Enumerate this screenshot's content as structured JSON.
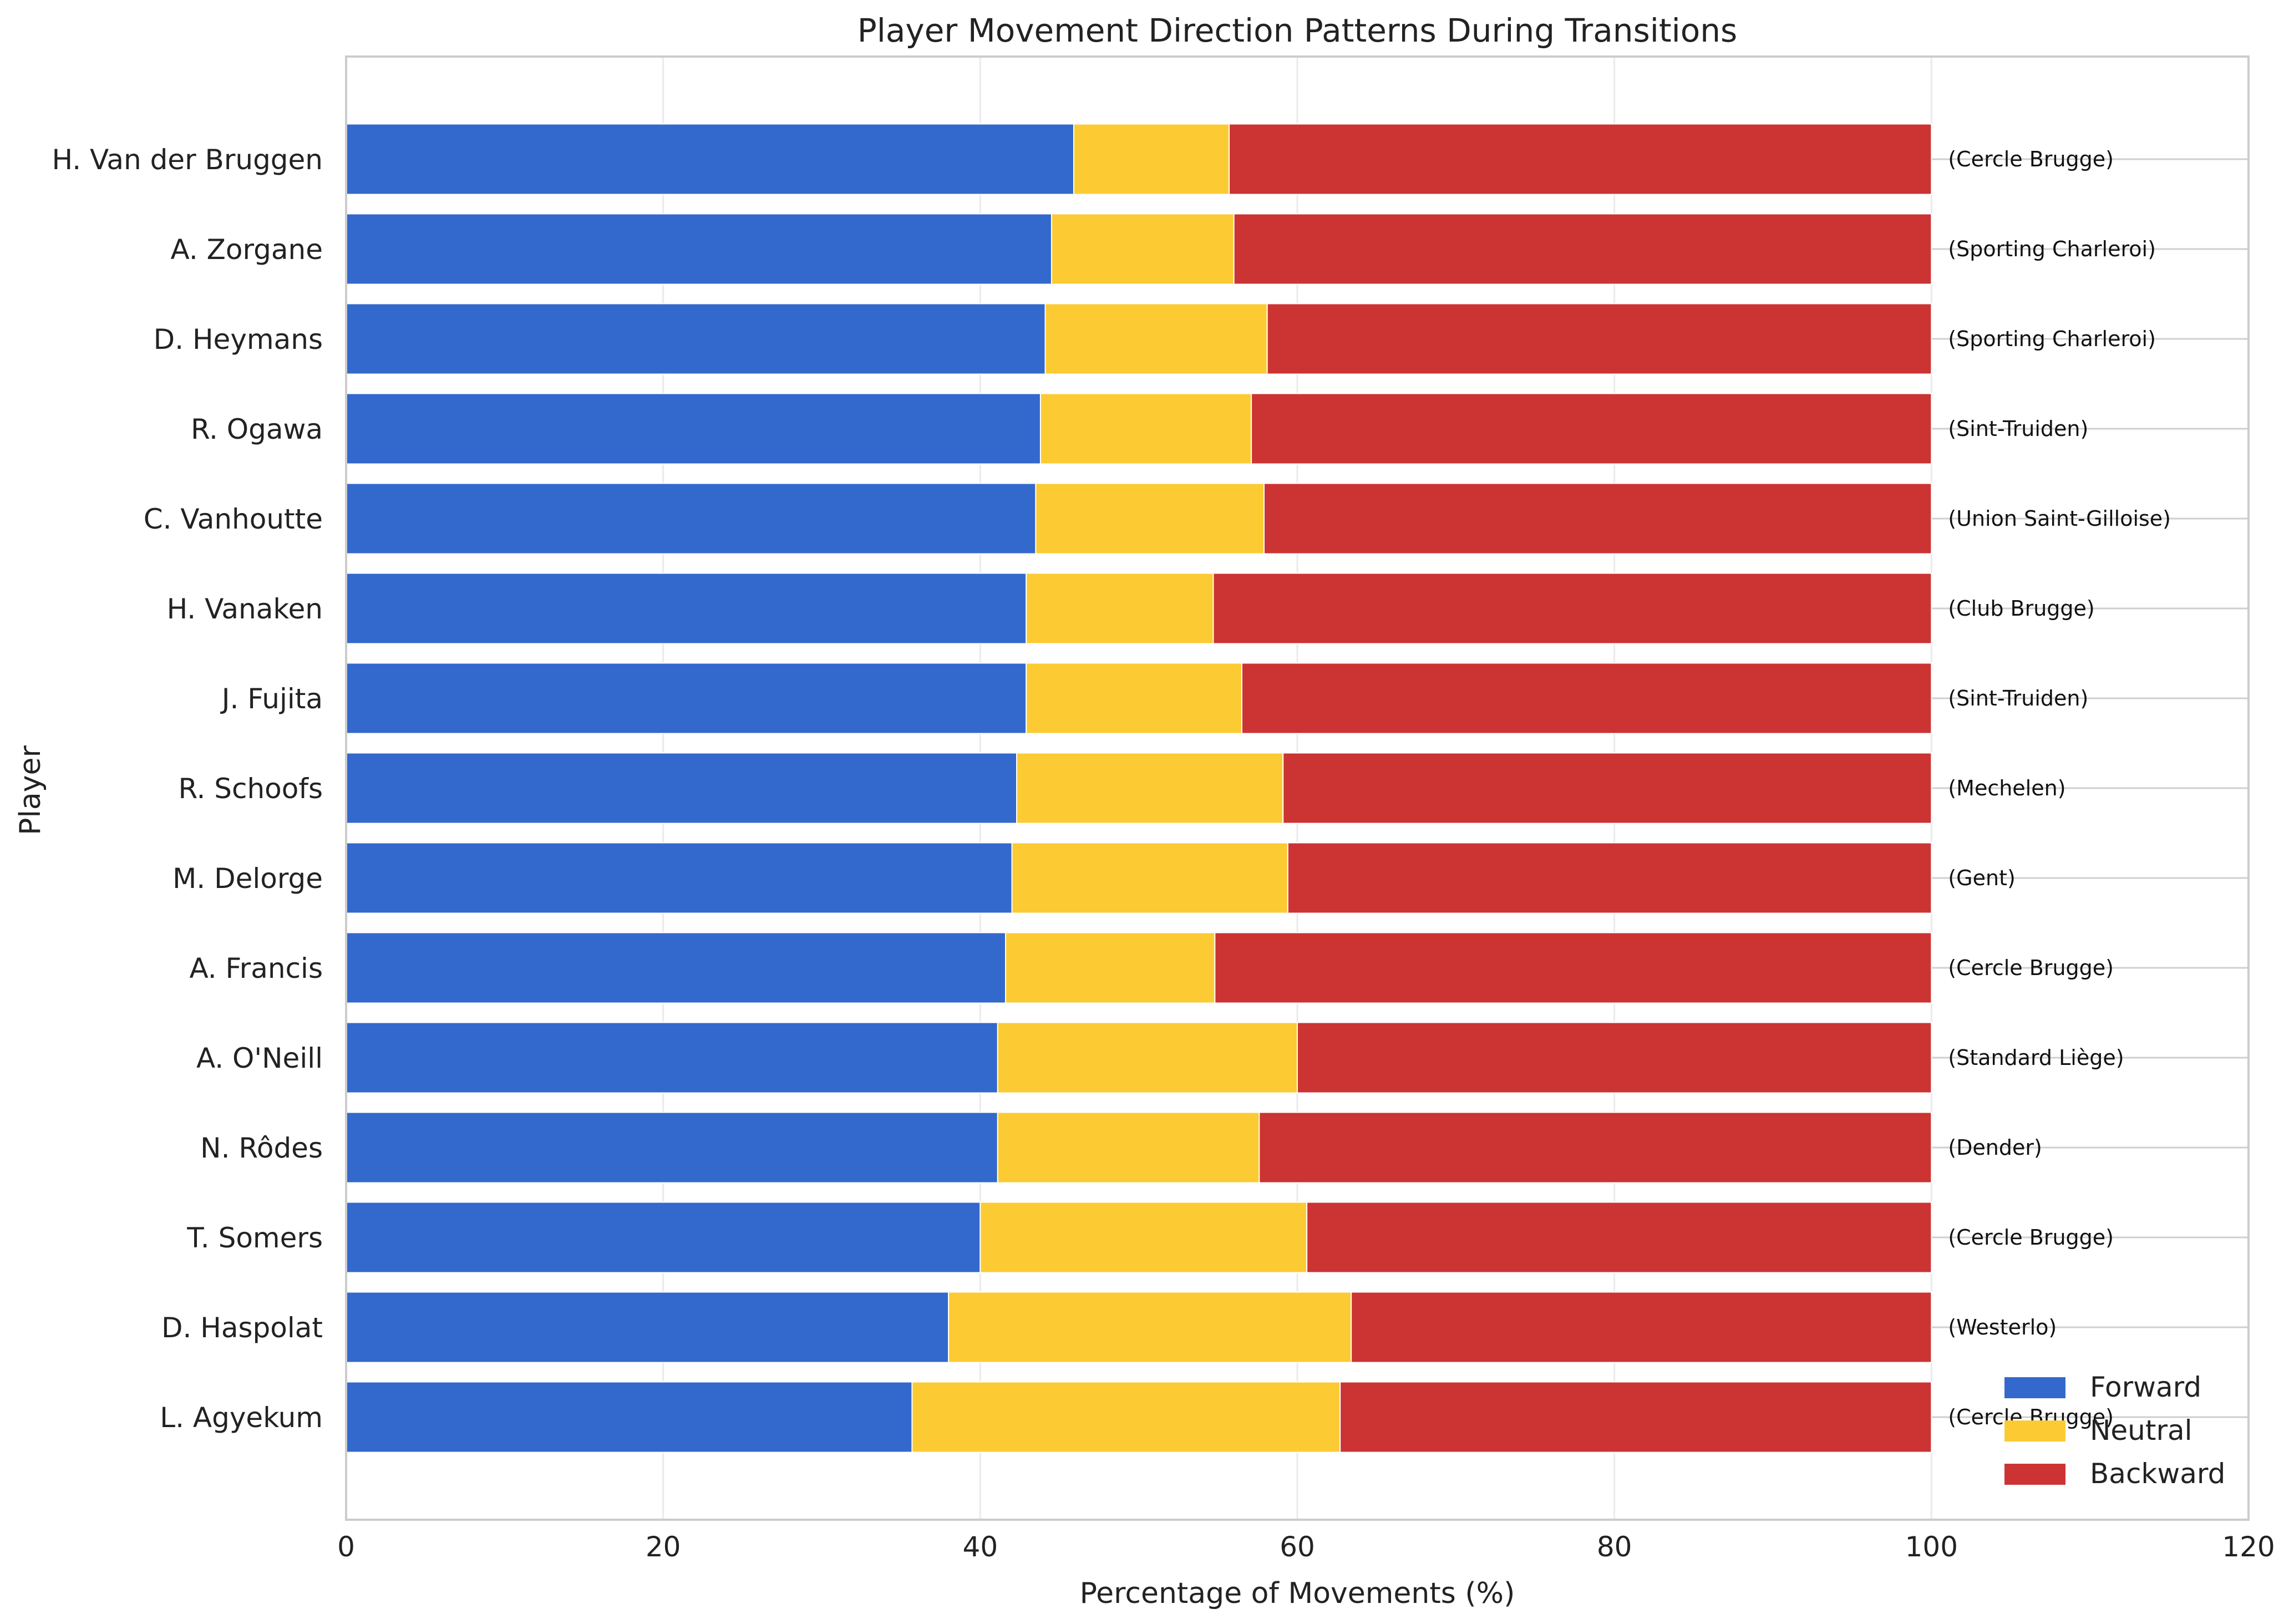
{
  "chart_data": {
    "type": "bar",
    "orientation": "horizontal",
    "stacked": true,
    "title": "Player Movement Direction Patterns During Transitions",
    "xlabel": "Percentage of Movements (%)",
    "ylabel": "Player",
    "xlim": [
      0,
      120
    ],
    "xticks": [
      "0",
      "20",
      "40",
      "60",
      "80",
      "100",
      "120"
    ],
    "grid": true,
    "legend_position": "bottom-right",
    "categories": [
      "H. Van der Bruggen",
      "A. Zorgane",
      "D. Heymans",
      "R. Ogawa",
      "C. Vanhoutte",
      "H. Vanaken",
      "J. Fujita",
      "R. Schoofs",
      "M. Delorge",
      "A. Francis",
      "A. O'Neill",
      "N. Rôdes",
      "T. Somers",
      "D. Haspolat",
      "L. Agyekum"
    ],
    "teams": [
      "(Cercle Brugge)",
      "(Sporting Charleroi)",
      "(Sporting Charleroi)",
      "(Sint-Truiden)",
      "(Union Saint-Gilloise)",
      "(Club Brugge)",
      "(Sint-Truiden)",
      "(Mechelen)",
      "(Gent)",
      "(Cercle Brugge)",
      "(Standard Liège)",
      "(Dender)",
      "(Cercle Brugge)",
      "(Westerlo)",
      "(Cercle Brugge)"
    ],
    "series": [
      {
        "name": "Forward",
        "color": "#3369cc",
        "values": [
          45.9,
          44.5,
          44.1,
          43.8,
          43.5,
          42.9,
          42.9,
          42.3,
          42.0,
          41.6,
          41.1,
          41.1,
          40.0,
          38.0,
          35.7
        ]
      },
      {
        "name": "Neutral",
        "color": "#fccb33",
        "values": [
          9.8,
          11.5,
          14.0,
          13.3,
          14.4,
          11.8,
          13.6,
          16.8,
          17.4,
          13.2,
          18.9,
          16.5,
          20.6,
          25.4,
          27.0
        ]
      },
      {
        "name": "Backward",
        "color": "#cc3333",
        "values": [
          44.3,
          44.0,
          41.9,
          42.9,
          42.1,
          45.3,
          43.5,
          40.9,
          40.6,
          45.2,
          40.0,
          42.4,
          39.4,
          36.6,
          37.3
        ]
      }
    ]
  }
}
